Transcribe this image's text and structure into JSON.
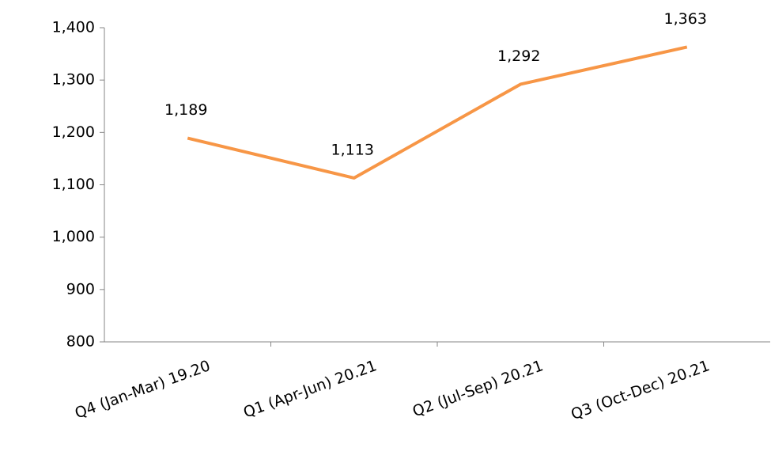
{
  "chart_data": {
    "type": "line",
    "categories": [
      "Q4 (Jan-Mar) 19.20",
      "Q1 (Apr-Jun) 20.21",
      "Q2 (Jul-Sep) 20.21",
      "Q3 (Oct-Dec) 20.21"
    ],
    "values": [
      1189,
      1113,
      1292,
      1363
    ],
    "value_labels": [
      "1,189",
      "1,113",
      "1,292",
      "1,363"
    ],
    "color": "#f79646",
    "ylim": [
      800,
      1400
    ],
    "yticks": [
      800,
      900,
      {
        "value": 1000,
        "label": "1,000"
      },
      {
        "value": 1100,
        "label": "1,100"
      },
      {
        "value": 1200,
        "label": "1,200"
      },
      {
        "value": 1300,
        "label": "1,300"
      },
      {
        "value": 1400,
        "label": "1,400"
      }
    ],
    "grid": false
  }
}
